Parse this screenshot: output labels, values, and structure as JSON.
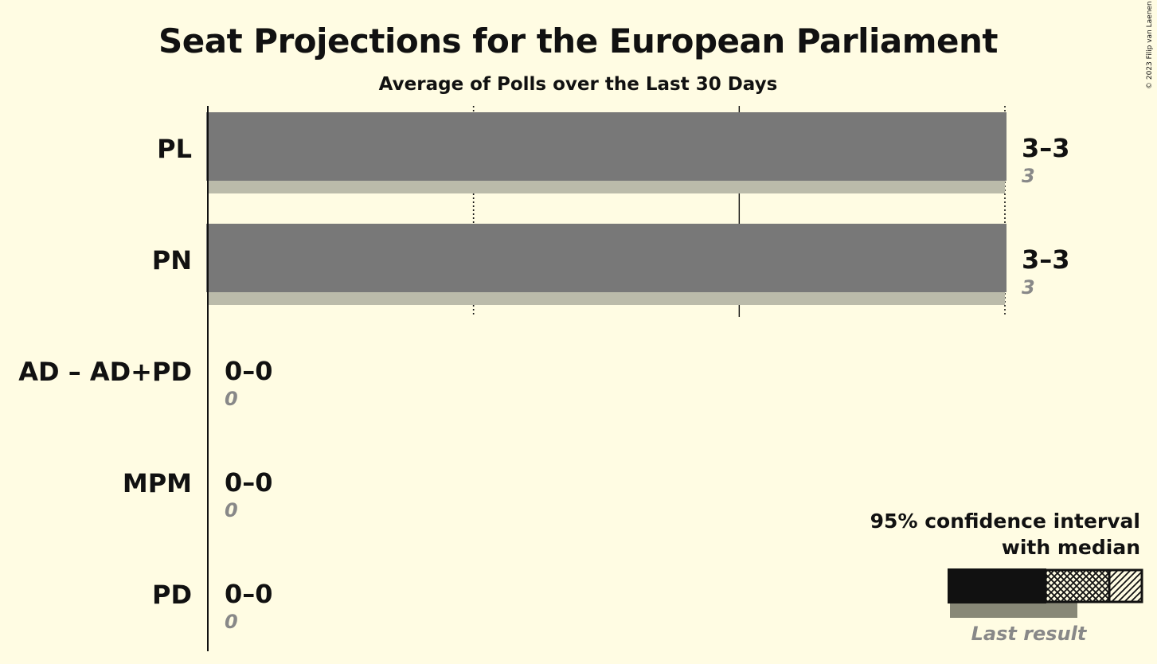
{
  "chart_data": {
    "type": "bar",
    "title": "Seat Projections for the European Parliament",
    "subtitle": "Average of Polls over the Last 30 Days",
    "xlim": [
      0,
      3
    ],
    "gridlines": [
      1,
      2,
      3
    ],
    "categories": [
      "PL",
      "PN",
      "AD – AD+PD",
      "MPM",
      "PD"
    ],
    "series": [
      {
        "ci_low": [
          3,
          3,
          0,
          0,
          0
        ],
        "ci_high": [
          3,
          3,
          0,
          0,
          0
        ],
        "median": [
          3,
          3,
          0,
          0,
          0
        ]
      },
      {
        "name": "Last result",
        "values": [
          3,
          3,
          0,
          0,
          0
        ]
      }
    ],
    "range_labels": [
      "3–3",
      "3–3",
      "0–0",
      "0–0",
      "0–0"
    ],
    "last_result_labels": [
      "3",
      "3",
      "0",
      "0",
      "0"
    ],
    "colors": {
      "background": "#FFFCE3",
      "bar": "#787878",
      "last_result": "#BBBBAA",
      "text": "#111111",
      "muted": "#888888"
    }
  },
  "legend": {
    "line1": "95% confidence interval",
    "line2": "with median",
    "last_result": "Last result"
  },
  "copyright": "© 2023 Filip van Laenen"
}
